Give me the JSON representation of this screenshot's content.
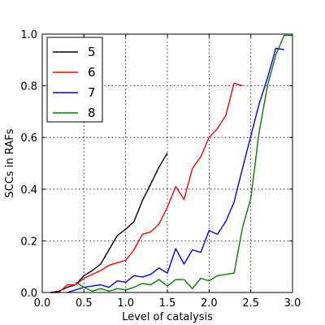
{
  "chart_data": {
    "type": "line",
    "title": "",
    "xlabel": "Level of catalysis",
    "ylabel": "SCCs in RAFs",
    "xlim": [
      0.0,
      3.0
    ],
    "ylim": [
      0.0,
      1.0
    ],
    "xticks": [
      0.0,
      0.5,
      1.0,
      1.5,
      2.0,
      2.5,
      3.0
    ],
    "xtick_labels": [
      "0.0",
      "0.5",
      "1.0",
      "1.5",
      "2.0",
      "2.5",
      "3.0"
    ],
    "yticks": [
      0.0,
      0.2,
      0.4,
      0.6,
      0.8,
      1.0
    ],
    "ytick_labels": [
      "0.0",
      "0.2",
      "0.4",
      "0.6",
      "0.8",
      "1.0"
    ],
    "grid": true,
    "legend_position": "top-left",
    "series": [
      {
        "name": "5",
        "color": "#000000",
        "x": [
          0.1,
          0.2,
          0.3,
          0.4,
          0.5,
          0.6,
          0.7,
          0.8,
          0.9,
          1.0,
          1.1,
          1.2,
          1.3,
          1.4,
          1.5
        ],
        "y": [
          0.0,
          0.005,
          0.02,
          0.03,
          0.065,
          0.085,
          0.11,
          0.165,
          0.22,
          0.245,
          0.275,
          0.355,
          0.42,
          0.485,
          0.54
        ]
      },
      {
        "name": "6",
        "color": "#ff0000",
        "x": [
          0.1,
          0.2,
          0.3,
          0.4,
          0.5,
          0.6,
          0.7,
          0.8,
          0.9,
          1.0,
          1.1,
          1.2,
          1.3,
          1.4,
          1.5,
          1.6,
          1.7,
          1.8,
          1.9,
          2.0,
          2.1,
          2.2,
          2.3,
          2.4
        ],
        "y": [
          0.0,
          0.0,
          0.03,
          0.03,
          0.055,
          0.07,
          0.085,
          0.105,
          0.115,
          0.125,
          0.165,
          0.225,
          0.235,
          0.265,
          0.33,
          0.41,
          0.36,
          0.48,
          0.525,
          0.6,
          0.635,
          0.685,
          0.81,
          0.8
        ]
      },
      {
        "name": "7",
        "color": "#0000ff",
        "x": [
          0.3,
          0.4,
          0.5,
          0.6,
          0.7,
          0.8,
          0.9,
          1.0,
          1.1,
          1.2,
          1.3,
          1.4,
          1.5,
          1.6,
          1.7,
          1.8,
          1.9,
          2.0,
          2.1,
          2.2,
          2.3,
          2.4,
          2.5,
          2.6,
          2.7,
          2.8,
          2.9
        ],
        "y": [
          0.0,
          0.01,
          0.02,
          0.025,
          0.03,
          0.02,
          0.045,
          0.04,
          0.065,
          0.06,
          0.07,
          0.095,
          0.075,
          0.17,
          0.11,
          0.165,
          0.155,
          0.24,
          0.225,
          0.275,
          0.35,
          0.48,
          0.605,
          0.73,
          0.83,
          0.945,
          0.94
        ]
      },
      {
        "name": "8",
        "color": "#008000",
        "x": [
          0.4,
          0.5,
          0.6,
          0.7,
          0.8,
          0.9,
          1.0,
          1.1,
          1.2,
          1.3,
          1.4,
          1.5,
          1.6,
          1.7,
          1.8,
          1.9,
          2.0,
          2.1,
          2.2,
          2.3,
          2.4,
          2.5,
          2.6,
          2.7,
          2.8,
          2.9,
          3.0
        ],
        "y": [
          0.04,
          0.02,
          0.005,
          0.015,
          0.005,
          0.015,
          0.01,
          0.02,
          0.035,
          0.03,
          0.05,
          0.025,
          0.05,
          0.05,
          0.015,
          0.055,
          0.045,
          0.065,
          0.07,
          0.075,
          0.25,
          0.365,
          0.62,
          0.8,
          0.92,
          0.995,
          0.995
        ]
      }
    ]
  }
}
